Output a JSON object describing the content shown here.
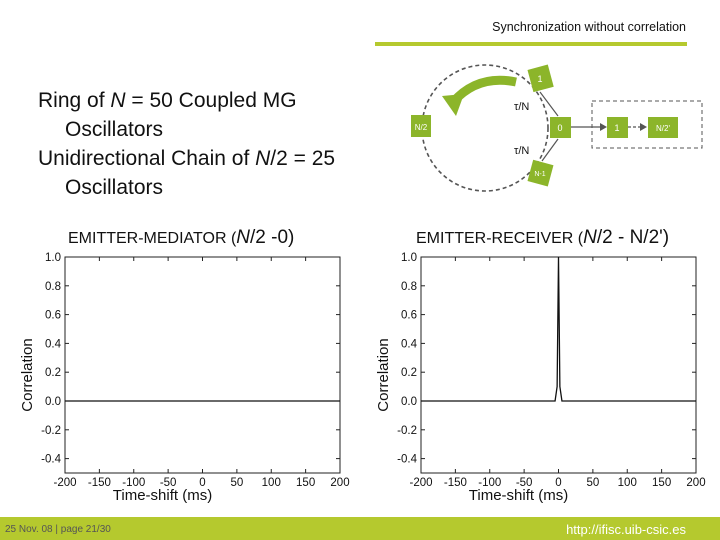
{
  "header": {
    "title": "Synchronization without correlation"
  },
  "bullets": [
    {
      "pre": "Ring of ",
      "var": "N",
      "post": " = 50 Coupled MG",
      "cont": "Oscillators"
    },
    {
      "pre": "Unidirectional Chain of ",
      "var": "N",
      "post": "/2 = 25",
      "cont": "Oscillators"
    }
  ],
  "diagram": {
    "node_top": "1",
    "node_left": "N/2",
    "node_mid": "0",
    "node_bottom": "N-1",
    "chain_1": "1",
    "chain_end": "N/2'",
    "tau_top": "τ/N",
    "tau_bottom": "τ/N",
    "colors": {
      "node": "#8cb52a",
      "node_text": "#ffffff",
      "ring": "#555555",
      "arrow": "#8cb52a"
    }
  },
  "panels": [
    {
      "title_pre": "EMITTER-MEDIATOR (",
      "title_var": "N",
      "title_post": "/2 -0)"
    },
    {
      "title_pre": "EMITTER-RECEIVER (",
      "title_var": "N",
      "title_post": "/2 - N/2')"
    }
  ],
  "chart_data": [
    {
      "type": "line",
      "xlabel": "Time-shift (ms)",
      "ylabel": "Correlation",
      "xlim": [
        -200,
        200
      ],
      "ylim": [
        -0.5,
        1.0
      ],
      "xticks": [
        "-200",
        "-150",
        "-100",
        "-50",
        "0",
        "50",
        "100",
        "150",
        "200"
      ],
      "yticks": [
        "1.0",
        "0.8",
        "0.6",
        "0.4",
        "0.2",
        "0.0",
        "-0.2",
        "-0.4"
      ],
      "series": [
        {
          "x": [
            -200,
            -150,
            -100,
            -50,
            0,
            50,
            100,
            150,
            200
          ],
          "y": [
            0.0,
            0.0,
            0.0,
            0.0,
            0.0,
            0.0,
            0.0,
            0.0,
            0.0
          ]
        }
      ]
    },
    {
      "type": "line",
      "xlabel": "Time-shift (ms)",
      "ylabel": "Correlation",
      "xlim": [
        -200,
        200
      ],
      "ylim": [
        -0.5,
        1.0
      ],
      "xticks": [
        "-200",
        "-150",
        "-100",
        "-50",
        "0",
        "50",
        "100",
        "150",
        "200"
      ],
      "yticks": [
        "1.0",
        "0.8",
        "0.6",
        "0.4",
        "0.2",
        "0.0",
        "-0.2",
        "-0.4"
      ],
      "series": [
        {
          "x": [
            -200,
            -150,
            -100,
            -50,
            -5,
            -2,
            0,
            2,
            5,
            50,
            100,
            150,
            200
          ],
          "y": [
            0.0,
            0.0,
            0.0,
            0.0,
            0.0,
            0.1,
            1.0,
            0.1,
            0.0,
            0.0,
            0.0,
            0.0,
            0.0
          ]
        }
      ]
    }
  ],
  "footer": {
    "left": "25 Nov. 08  |   page 21/30",
    "right": "http://ifisc.uib-csic.es",
    "color": "#b5c92e"
  }
}
